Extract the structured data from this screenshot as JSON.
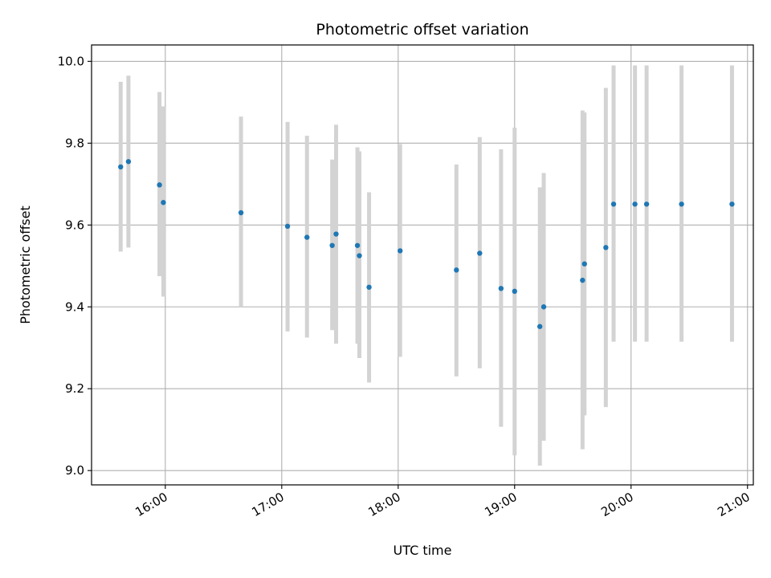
{
  "chart_data": {
    "type": "scatter",
    "title": "Photometric offset variation",
    "xlabel": "UTC time",
    "ylabel": "Photometric offset",
    "x_tick_labels": [
      "16:00",
      "17:00",
      "18:00",
      "19:00",
      "20:00",
      "21:00"
    ],
    "x_tick_values": [
      "16:00",
      "17:00",
      "18:00",
      "19:00",
      "20:00",
      "21:00"
    ],
    "y_tick_labels": [
      "9.0",
      "9.2",
      "9.4",
      "9.6",
      "9.8",
      "10.0"
    ],
    "y_tick_values": [
      9.0,
      9.2,
      9.4,
      9.6,
      9.8,
      10.0
    ],
    "xlim": [
      "15:22",
      "21:03"
    ],
    "ylim": [
      8.965,
      10.04
    ],
    "grid": true,
    "marker_color": "#1f77b4",
    "errorbar_color": "#d3d3d3",
    "points": [
      {
        "t": "15:37",
        "y": 9.742,
        "lo": 9.535,
        "hi": 9.95
      },
      {
        "t": "15:41",
        "y": 9.755,
        "lo": 9.545,
        "hi": 9.965
      },
      {
        "t": "15:57",
        "y": 9.698,
        "lo": 9.475,
        "hi": 9.925
      },
      {
        "t": "15:59",
        "y": 9.655,
        "lo": 9.425,
        "hi": 9.89
      },
      {
        "t": "16:39",
        "y": 9.63,
        "lo": 9.4,
        "hi": 9.865
      },
      {
        "t": "17:03",
        "y": 9.597,
        "lo": 9.34,
        "hi": 9.852
      },
      {
        "t": "17:13",
        "y": 9.57,
        "lo": 9.325,
        "hi": 9.818
      },
      {
        "t": "17:26",
        "y": 9.55,
        "lo": 9.343,
        "hi": 9.76
      },
      {
        "t": "17:28",
        "y": 9.578,
        "lo": 9.31,
        "hi": 9.845
      },
      {
        "t": "17:39",
        "y": 9.55,
        "lo": 9.31,
        "hi": 9.79
      },
      {
        "t": "17:40",
        "y": 9.525,
        "lo": 9.275,
        "hi": 9.78
      },
      {
        "t": "17:45",
        "y": 9.448,
        "lo": 9.215,
        "hi": 9.68
      },
      {
        "t": "18:01",
        "y": 9.537,
        "lo": 9.278,
        "hi": 9.798
      },
      {
        "t": "18:30",
        "y": 9.49,
        "lo": 9.23,
        "hi": 9.748
      },
      {
        "t": "18:42",
        "y": 9.531,
        "lo": 9.25,
        "hi": 9.815
      },
      {
        "t": "18:53",
        "y": 9.445,
        "lo": 9.107,
        "hi": 9.785
      },
      {
        "t": "19:00",
        "y": 9.438,
        "lo": 9.037,
        "hi": 9.838
      },
      {
        "t": "19:13",
        "y": 9.352,
        "lo": 9.012,
        "hi": 9.692
      },
      {
        "t": "19:15",
        "y": 9.4,
        "lo": 9.073,
        "hi": 9.727
      },
      {
        "t": "19:35",
        "y": 9.465,
        "lo": 9.052,
        "hi": 9.88
      },
      {
        "t": "19:36",
        "y": 9.505,
        "lo": 9.135,
        "hi": 9.875
      },
      {
        "t": "19:47",
        "y": 9.545,
        "lo": 9.155,
        "hi": 9.935
      },
      {
        "t": "19:51",
        "y": 9.651,
        "lo": 9.315,
        "hi": 9.99
      },
      {
        "t": "20:02",
        "y": 9.651,
        "lo": 9.315,
        "hi": 9.99
      },
      {
        "t": "20:08",
        "y": 9.651,
        "lo": 9.315,
        "hi": 9.99
      },
      {
        "t": "20:26",
        "y": 9.651,
        "lo": 9.315,
        "hi": 9.99
      },
      {
        "t": "20:52",
        "y": 9.651,
        "lo": 9.315,
        "hi": 9.99
      }
    ]
  }
}
